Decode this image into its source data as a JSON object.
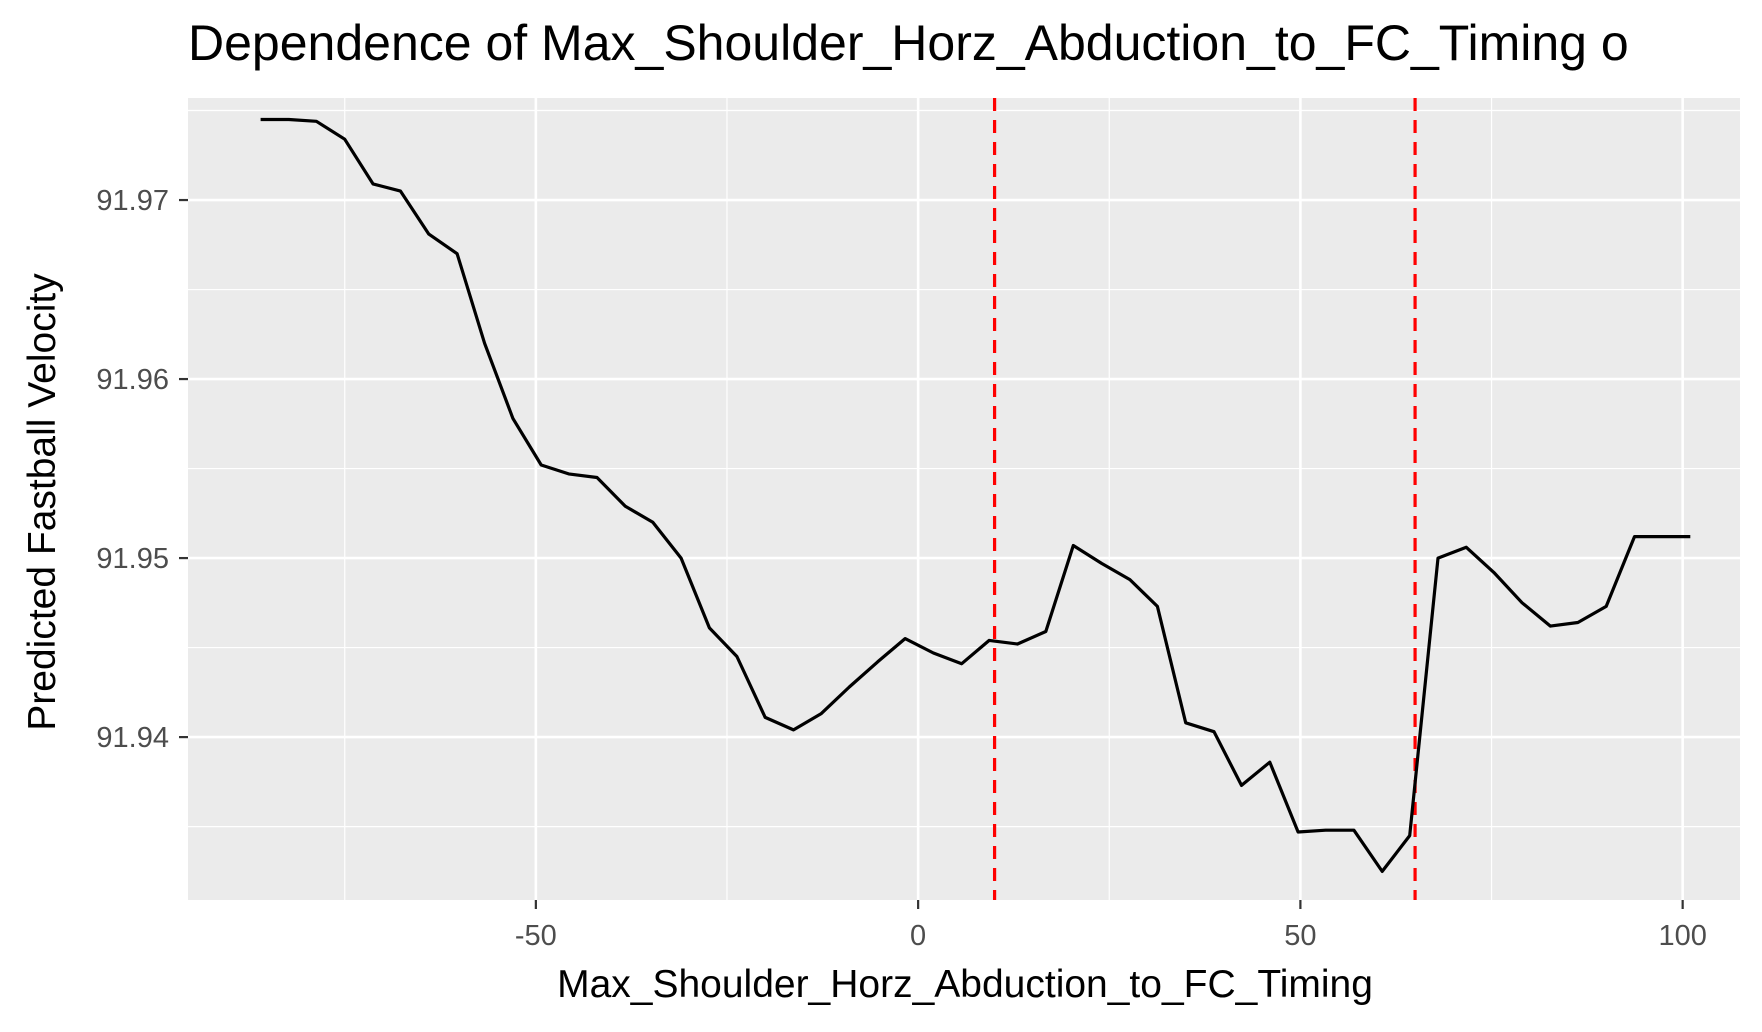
{
  "chart_data": {
    "type": "line",
    "title": "Dependence of Max_Shoulder_Horz_Abduction_to_FC_Timing o",
    "xlabel": "Max_Shoulder_Horz_Abduction_to_FC_Timing",
    "ylabel": "Predicted Fastball Velocity",
    "xlim": [
      -95.5,
      107.5
    ],
    "ylim": [
      91.9309,
      91.9757
    ],
    "x_ticks": [
      -50,
      0,
      50,
      100
    ],
    "x_tick_labels": [
      "-50",
      "0",
      "50",
      "100"
    ],
    "y_ticks": [
      91.94,
      91.95,
      91.96,
      91.97
    ],
    "y_tick_labels": [
      "91.94",
      "91.95",
      "91.96",
      "91.97"
    ],
    "grid": true,
    "background": "#EBEBEB",
    "line_color": "#000000",
    "reference_lines": {
      "orientation": "vertical",
      "style": "dashed",
      "color": "#FF0000",
      "x": [
        10,
        65
      ]
    },
    "series": [
      {
        "x": [
          -86,
          -82.3,
          -78.7,
          -75,
          -71.3,
          -67.7,
          -64,
          -60.3,
          -56.7,
          -53,
          -49.3,
          -45.7,
          -42,
          -38.3,
          -34.7,
          -31,
          -27.3,
          -23.7,
          -20,
          -16.3,
          -12.7,
          -9,
          -5.3,
          -1.7,
          2,
          5.7,
          9.3,
          13,
          16.7,
          20.3,
          24,
          27.7,
          31.3,
          35,
          38.7,
          42.3,
          46,
          49.7,
          53.3,
          57,
          60.7,
          64.3,
          68,
          71.7,
          75.3,
          79,
          82.7,
          86.3,
          90,
          93.7,
          97.3,
          101
        ],
        "values": [
          91.9745,
          91.9745,
          91.9744,
          91.9734,
          91.9709,
          91.9705,
          91.9681,
          91.967,
          91.962,
          91.9578,
          91.9552,
          91.9547,
          91.9545,
          91.9529,
          91.952,
          91.95,
          91.9461,
          91.9445,
          91.9411,
          91.9404,
          91.9413,
          91.9428,
          91.9442,
          91.9455,
          91.9447,
          91.9441,
          91.9454,
          91.9452,
          91.9459,
          91.9507,
          91.9497,
          91.9488,
          91.9473,
          91.9408,
          91.9403,
          91.9373,
          91.9386,
          91.9347,
          91.9348,
          91.9348,
          91.9325,
          91.9345,
          91.95,
          91.9506,
          91.9492,
          91.9475,
          91.9462,
          91.9464,
          91.9473,
          91.9512,
          91.9512,
          91.9512
        ]
      }
    ]
  }
}
